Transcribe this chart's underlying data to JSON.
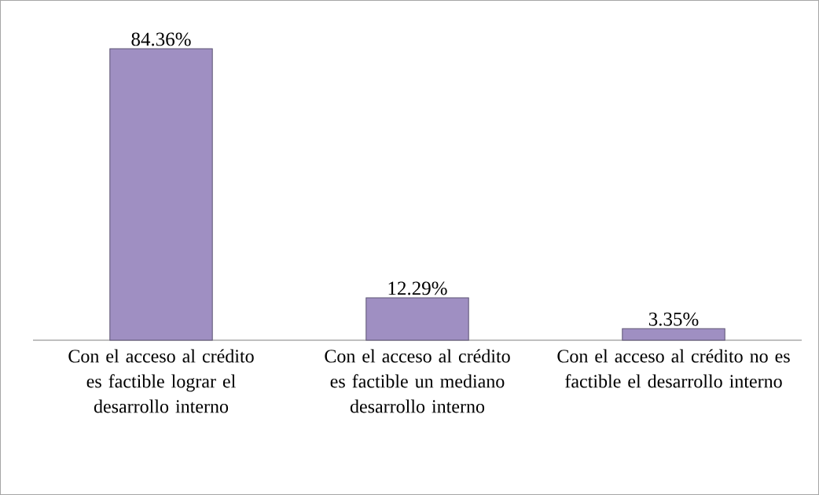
{
  "chart_data": {
    "type": "bar",
    "categories": [
      "Con el acceso al crédito es factible lograr el desarrollo interno",
      "Con el acceso al crédito es factible un mediano desarrollo interno",
      "Con el acceso al crédito no es factible el desarrollo interno"
    ],
    "values": [
      84.36,
      12.29,
      3.35
    ],
    "value_labels": [
      "84.36%",
      "12.29%",
      "3.35%"
    ],
    "color": "#9f8fc2"
  }
}
